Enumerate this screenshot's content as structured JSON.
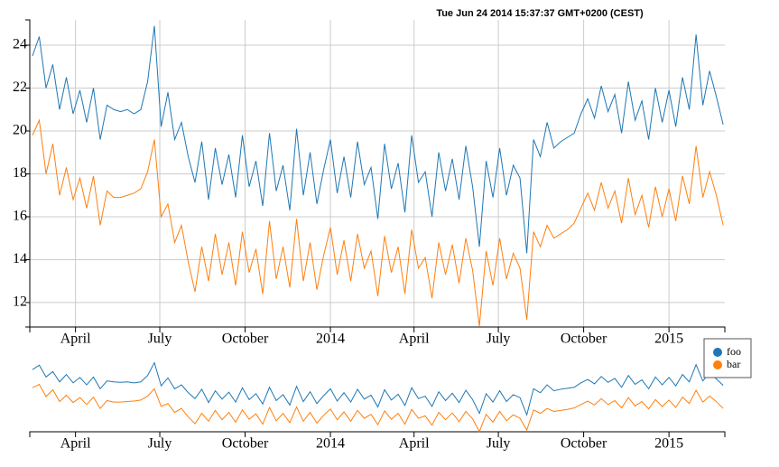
{
  "chart_data": {
    "type": "line",
    "title": "Tue Jun 24 2014 15:37:37 GMT+0200 (CEST)",
    "x": [
      2013.12,
      2013.14,
      2013.16,
      2013.18,
      2013.2,
      2013.22,
      2013.24,
      2013.26,
      2013.28,
      2013.3,
      2013.32,
      2013.34,
      2013.36,
      2013.38,
      2013.4,
      2013.42,
      2013.44,
      2013.46,
      2013.48,
      2013.5,
      2013.52,
      2013.54,
      2013.56,
      2013.58,
      2013.6,
      2013.62,
      2013.64,
      2013.66,
      2013.68,
      2013.7,
      2013.72,
      2013.74,
      2013.76,
      2013.78,
      2013.8,
      2013.82,
      2013.84,
      2013.86,
      2013.88,
      2013.9,
      2013.92,
      2013.94,
      2013.96,
      2013.98,
      2014.0,
      2014.02,
      2014.04,
      2014.06,
      2014.08,
      2014.1,
      2014.12,
      2014.14,
      2014.16,
      2014.18,
      2014.2,
      2014.22,
      2014.24,
      2014.26,
      2014.28,
      2014.3,
      2014.32,
      2014.34,
      2014.36,
      2014.38,
      2014.4,
      2014.42,
      2014.44,
      2014.46,
      2014.48,
      2014.5,
      2014.52,
      2014.54,
      2014.56,
      2014.58,
      2014.6,
      2014.62,
      2014.64,
      2014.66,
      2014.68,
      2014.7,
      2014.72,
      2014.74,
      2014.76,
      2014.78,
      2014.8,
      2014.82,
      2014.84,
      2014.86,
      2014.88,
      2014.9,
      2014.92,
      2014.94,
      2014.96,
      2014.98,
      2015.0,
      2015.02,
      2015.04,
      2015.06,
      2015.08,
      2015.1,
      2015.12,
      2015.14,
      2015.16
    ],
    "series": [
      {
        "name": "foo",
        "color": "#1f77b4",
        "values": [
          23.5,
          24.4,
          22.0,
          23.1,
          21.0,
          22.5,
          20.8,
          21.9,
          20.4,
          22.0,
          19.6,
          21.2,
          21.0,
          20.9,
          21.0,
          20.8,
          21.0,
          22.3,
          24.9,
          20.2,
          21.8,
          19.6,
          20.4,
          18.8,
          17.6,
          19.5,
          16.8,
          19.2,
          17.5,
          18.9,
          16.9,
          19.8,
          17.4,
          18.6,
          16.5,
          19.9,
          17.2,
          18.4,
          16.3,
          20.1,
          17.0,
          19.0,
          16.6,
          18.2,
          19.6,
          17.1,
          18.8,
          16.9,
          19.5,
          17.5,
          18.3,
          15.9,
          19.4,
          17.3,
          18.5,
          16.2,
          19.8,
          17.6,
          18.1,
          16.0,
          19.0,
          17.2,
          18.7,
          16.8,
          19.3,
          17.4,
          14.6,
          18.6,
          16.9,
          19.2,
          17.0,
          18.4,
          17.8,
          14.3,
          19.6,
          18.8,
          20.4,
          19.2,
          19.5,
          19.7,
          19.9,
          20.8,
          21.5,
          20.6,
          22.1,
          20.9,
          21.7,
          19.9,
          22.3,
          20.5,
          21.4,
          19.6,
          22.0,
          20.4,
          21.9,
          20.2,
          22.5,
          21.0,
          24.5,
          21.2,
          22.8,
          21.6,
          20.3
        ]
      },
      {
        "name": "bar",
        "color": "#ff7f0e",
        "values": [
          19.8,
          20.5,
          18.0,
          19.4,
          17.0,
          18.3,
          16.8,
          17.8,
          16.4,
          17.9,
          15.6,
          17.2,
          16.9,
          16.9,
          17.0,
          17.1,
          17.3,
          18.1,
          19.6,
          16.0,
          16.6,
          14.8,
          15.6,
          13.9,
          12.5,
          14.6,
          13.0,
          15.2,
          13.3,
          14.8,
          12.8,
          15.3,
          13.4,
          14.5,
          12.4,
          15.8,
          13.1,
          14.6,
          12.7,
          15.9,
          13.0,
          14.8,
          12.6,
          14.2,
          15.5,
          13.3,
          14.9,
          13.0,
          15.2,
          13.6,
          14.4,
          12.3,
          15.1,
          13.4,
          14.6,
          12.4,
          15.4,
          13.6,
          14.1,
          12.2,
          14.8,
          13.3,
          14.7,
          12.9,
          15.0,
          13.5,
          10.9,
          14.4,
          12.8,
          15.0,
          13.1,
          14.3,
          13.6,
          11.2,
          15.3,
          14.6,
          15.6,
          15.0,
          15.2,
          15.4,
          15.7,
          16.4,
          17.1,
          16.3,
          17.6,
          16.4,
          17.2,
          15.7,
          17.8,
          16.1,
          17.0,
          15.5,
          17.4,
          16.0,
          17.3,
          15.8,
          17.9,
          16.6,
          19.3,
          16.9,
          18.1,
          17.0,
          15.6
        ]
      }
    ],
    "xlim": [
      2013.112,
      2015.165
    ],
    "xticks": [
      {
        "value": 2013.247,
        "label": "April"
      },
      {
        "value": 2013.496,
        "label": "July"
      },
      {
        "value": 2013.748,
        "label": "October"
      },
      2014,
      {
        "value": 2014.247,
        "label": "April"
      },
      {
        "value": 2014.496,
        "label": "July"
      },
      {
        "value": 2014.748,
        "label": "October"
      },
      2015
    ],
    "ylim": [
      10.86,
      25.18
    ],
    "yticks": [
      12,
      14,
      16,
      18,
      20,
      22,
      24
    ],
    "grid": true
  }
}
